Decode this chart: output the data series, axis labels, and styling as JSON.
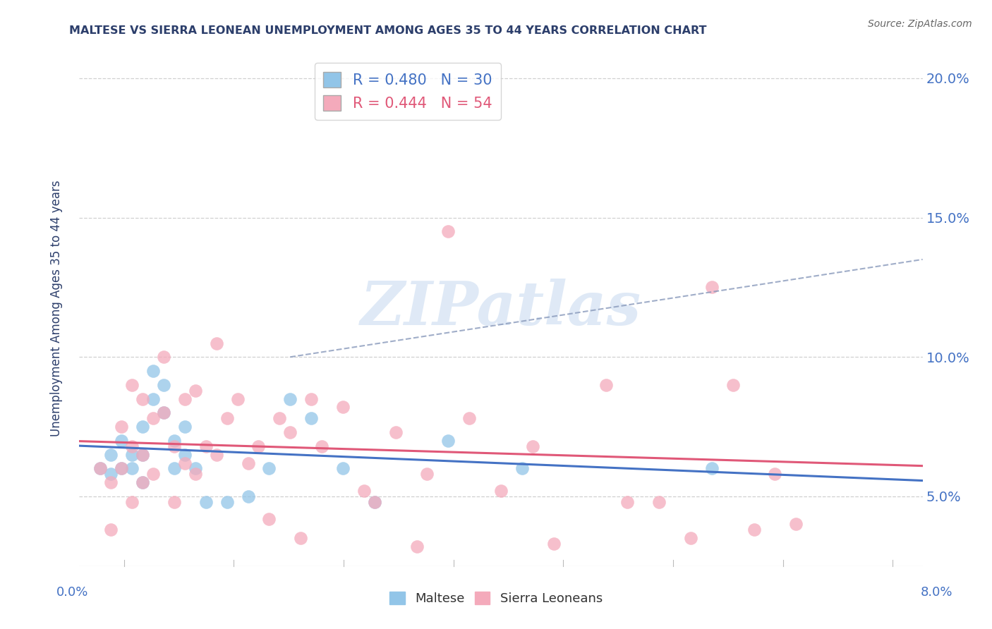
{
  "title": "MALTESE VS SIERRA LEONEAN UNEMPLOYMENT AMONG AGES 35 TO 44 YEARS CORRELATION CHART",
  "source": "Source: ZipAtlas.com",
  "ylabel": "Unemployment Among Ages 35 to 44 years",
  "xlim": [
    0.0,
    0.08
  ],
  "ylim": [
    0.025,
    0.21
  ],
  "yticks": [
    0.05,
    0.1,
    0.15,
    0.2
  ],
  "ytick_labels": [
    "5.0%",
    "10.0%",
    "15.0%",
    "20.0%"
  ],
  "watermark": "ZIPatlas",
  "maltese_color": "#92C5E8",
  "sierraleonean_color": "#F4AABB",
  "maltese_line_color": "#4472c4",
  "sl_line_color": "#E05878",
  "legend_label_maltese": "R = 0.480   N = 30",
  "legend_label_sl": "R = 0.444   N = 54",
  "maltese_x": [
    0.002,
    0.003,
    0.003,
    0.004,
    0.004,
    0.005,
    0.005,
    0.006,
    0.006,
    0.006,
    0.007,
    0.007,
    0.008,
    0.008,
    0.009,
    0.009,
    0.01,
    0.01,
    0.011,
    0.012,
    0.014,
    0.016,
    0.018,
    0.02,
    0.022,
    0.025,
    0.028,
    0.035,
    0.042,
    0.06
  ],
  "maltese_y": [
    0.06,
    0.058,
    0.065,
    0.06,
    0.07,
    0.065,
    0.06,
    0.075,
    0.065,
    0.055,
    0.095,
    0.085,
    0.09,
    0.08,
    0.06,
    0.07,
    0.075,
    0.065,
    0.06,
    0.048,
    0.048,
    0.05,
    0.06,
    0.085,
    0.078,
    0.06,
    0.048,
    0.07,
    0.06,
    0.06
  ],
  "sl_x": [
    0.002,
    0.003,
    0.003,
    0.004,
    0.004,
    0.005,
    0.005,
    0.005,
    0.006,
    0.006,
    0.006,
    0.007,
    0.007,
    0.008,
    0.008,
    0.009,
    0.009,
    0.01,
    0.01,
    0.011,
    0.011,
    0.012,
    0.013,
    0.013,
    0.014,
    0.015,
    0.016,
    0.017,
    0.018,
    0.019,
    0.02,
    0.021,
    0.022,
    0.023,
    0.025,
    0.027,
    0.028,
    0.03,
    0.032,
    0.033,
    0.035,
    0.037,
    0.04,
    0.043,
    0.045,
    0.05,
    0.052,
    0.055,
    0.058,
    0.06,
    0.062,
    0.064,
    0.066,
    0.068
  ],
  "sl_y": [
    0.06,
    0.055,
    0.038,
    0.06,
    0.075,
    0.048,
    0.068,
    0.09,
    0.055,
    0.065,
    0.085,
    0.078,
    0.058,
    0.08,
    0.1,
    0.048,
    0.068,
    0.062,
    0.085,
    0.058,
    0.088,
    0.068,
    0.065,
    0.105,
    0.078,
    0.085,
    0.062,
    0.068,
    0.042,
    0.078,
    0.073,
    0.035,
    0.085,
    0.068,
    0.082,
    0.052,
    0.048,
    0.073,
    0.032,
    0.058,
    0.145,
    0.078,
    0.052,
    0.068,
    0.033,
    0.09,
    0.048,
    0.048,
    0.035,
    0.125,
    0.09,
    0.038,
    0.058,
    0.04
  ],
  "title_color": "#2c3e6b",
  "axis_color": "#4472c4",
  "grid_color": "#d0d0d0",
  "background_color": "#ffffff"
}
